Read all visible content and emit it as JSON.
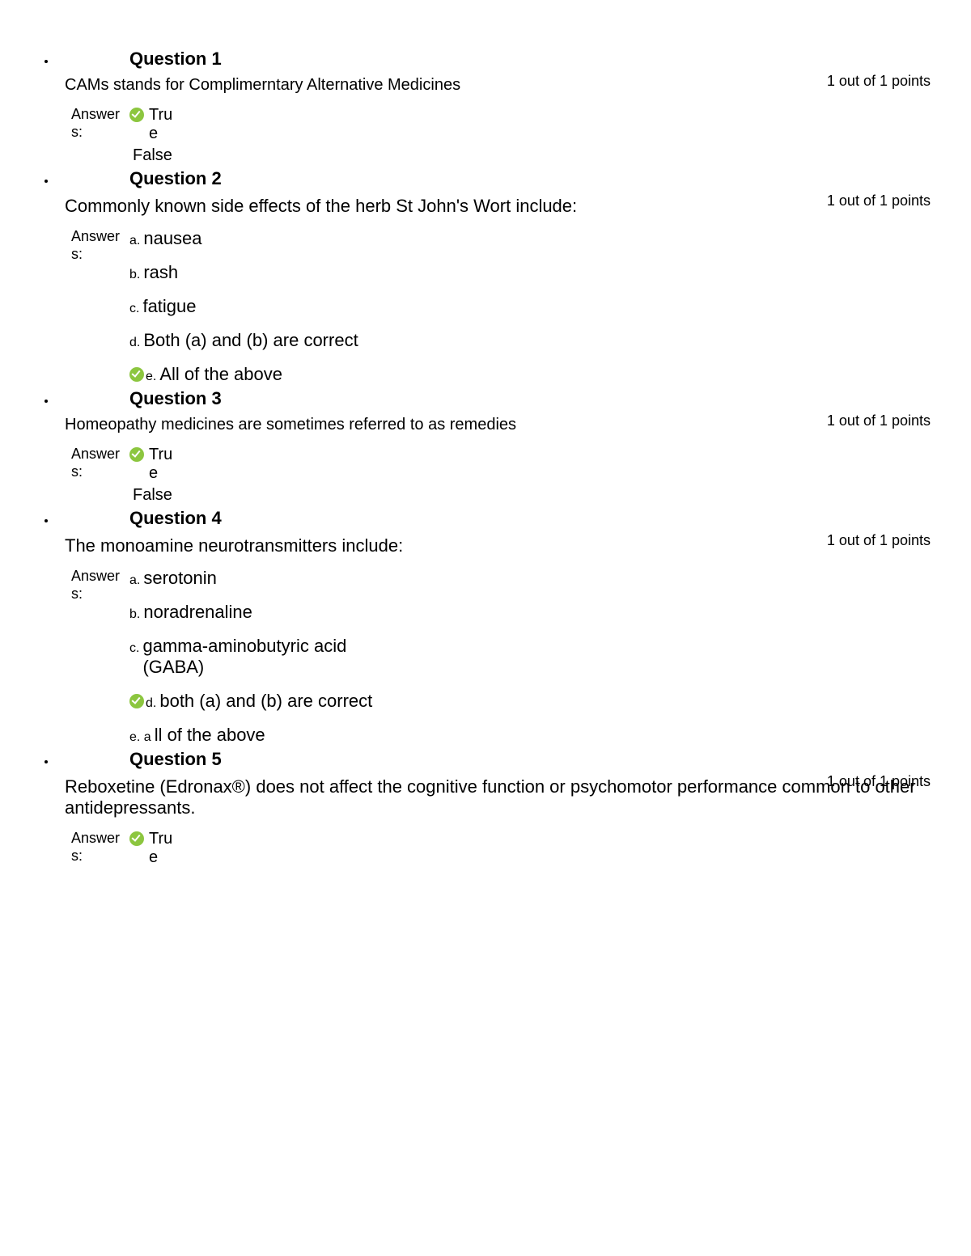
{
  "colors": {
    "check_bg": "#8cc63f",
    "check_mark": "#ffffff",
    "text": "#000000",
    "background": "#ffffff"
  },
  "labels": {
    "answers": "Answer s:",
    "points": "1 out of 1 points"
  },
  "questions": [
    {
      "title": "Question 1",
      "body": "CAMs stands for Complimerntary Alternative Medicines",
      "body_big": false,
      "type": "tf",
      "options": [
        {
          "text": "Tru e",
          "correct": true
        },
        {
          "text": "False",
          "correct": false
        }
      ]
    },
    {
      "title": "Question 2",
      "body": "Commonly known side effects of the herb St John's Wort include:",
      "body_big": true,
      "type": "mc",
      "options": [
        {
          "letter": "a.",
          "text": "nausea",
          "correct": false
        },
        {
          "letter": "b.",
          "text": "rash",
          "correct": false
        },
        {
          "letter": "c.",
          "text": "fatigue",
          "correct": false
        },
        {
          "letter": "d.",
          "text": "Both (a) and (b) are correct",
          "correct": false
        },
        {
          "letter": "e.",
          "text": "All of the above",
          "correct": true
        }
      ]
    },
    {
      "title": "Question 3",
      "body": "Homeopathy medicines are sometimes referred to as remedies",
      "body_big": false,
      "type": "tf",
      "options": [
        {
          "text": "Tru e",
          "correct": true
        },
        {
          "text": "False",
          "correct": false
        }
      ]
    },
    {
      "title": "Question 4",
      "body": "The monoamine neurotransmitters include:",
      "body_big": true,
      "type": "mc",
      "options": [
        {
          "letter": "a.",
          "text": "serotonin",
          "correct": false
        },
        {
          "letter": "b.",
          "text": "noradrenaline",
          "correct": false
        },
        {
          "letter": "c.",
          "text": "gamma-aminobutyric acid (GABA)",
          "correct": false
        },
        {
          "letter": "d.",
          "text": "both (a) and (b) are correct",
          "correct": true
        },
        {
          "letter": "e. a",
          "text": "ll of the above",
          "correct": false
        }
      ]
    },
    {
      "title": "Question 5",
      "body": "Reboxetine (Edronax®) does not affect the cognitive function or psychomotor performance common to other antidepressants.",
      "body_big": true,
      "type": "tf",
      "options": [
        {
          "text": "Tru e",
          "correct": true
        }
      ]
    }
  ]
}
